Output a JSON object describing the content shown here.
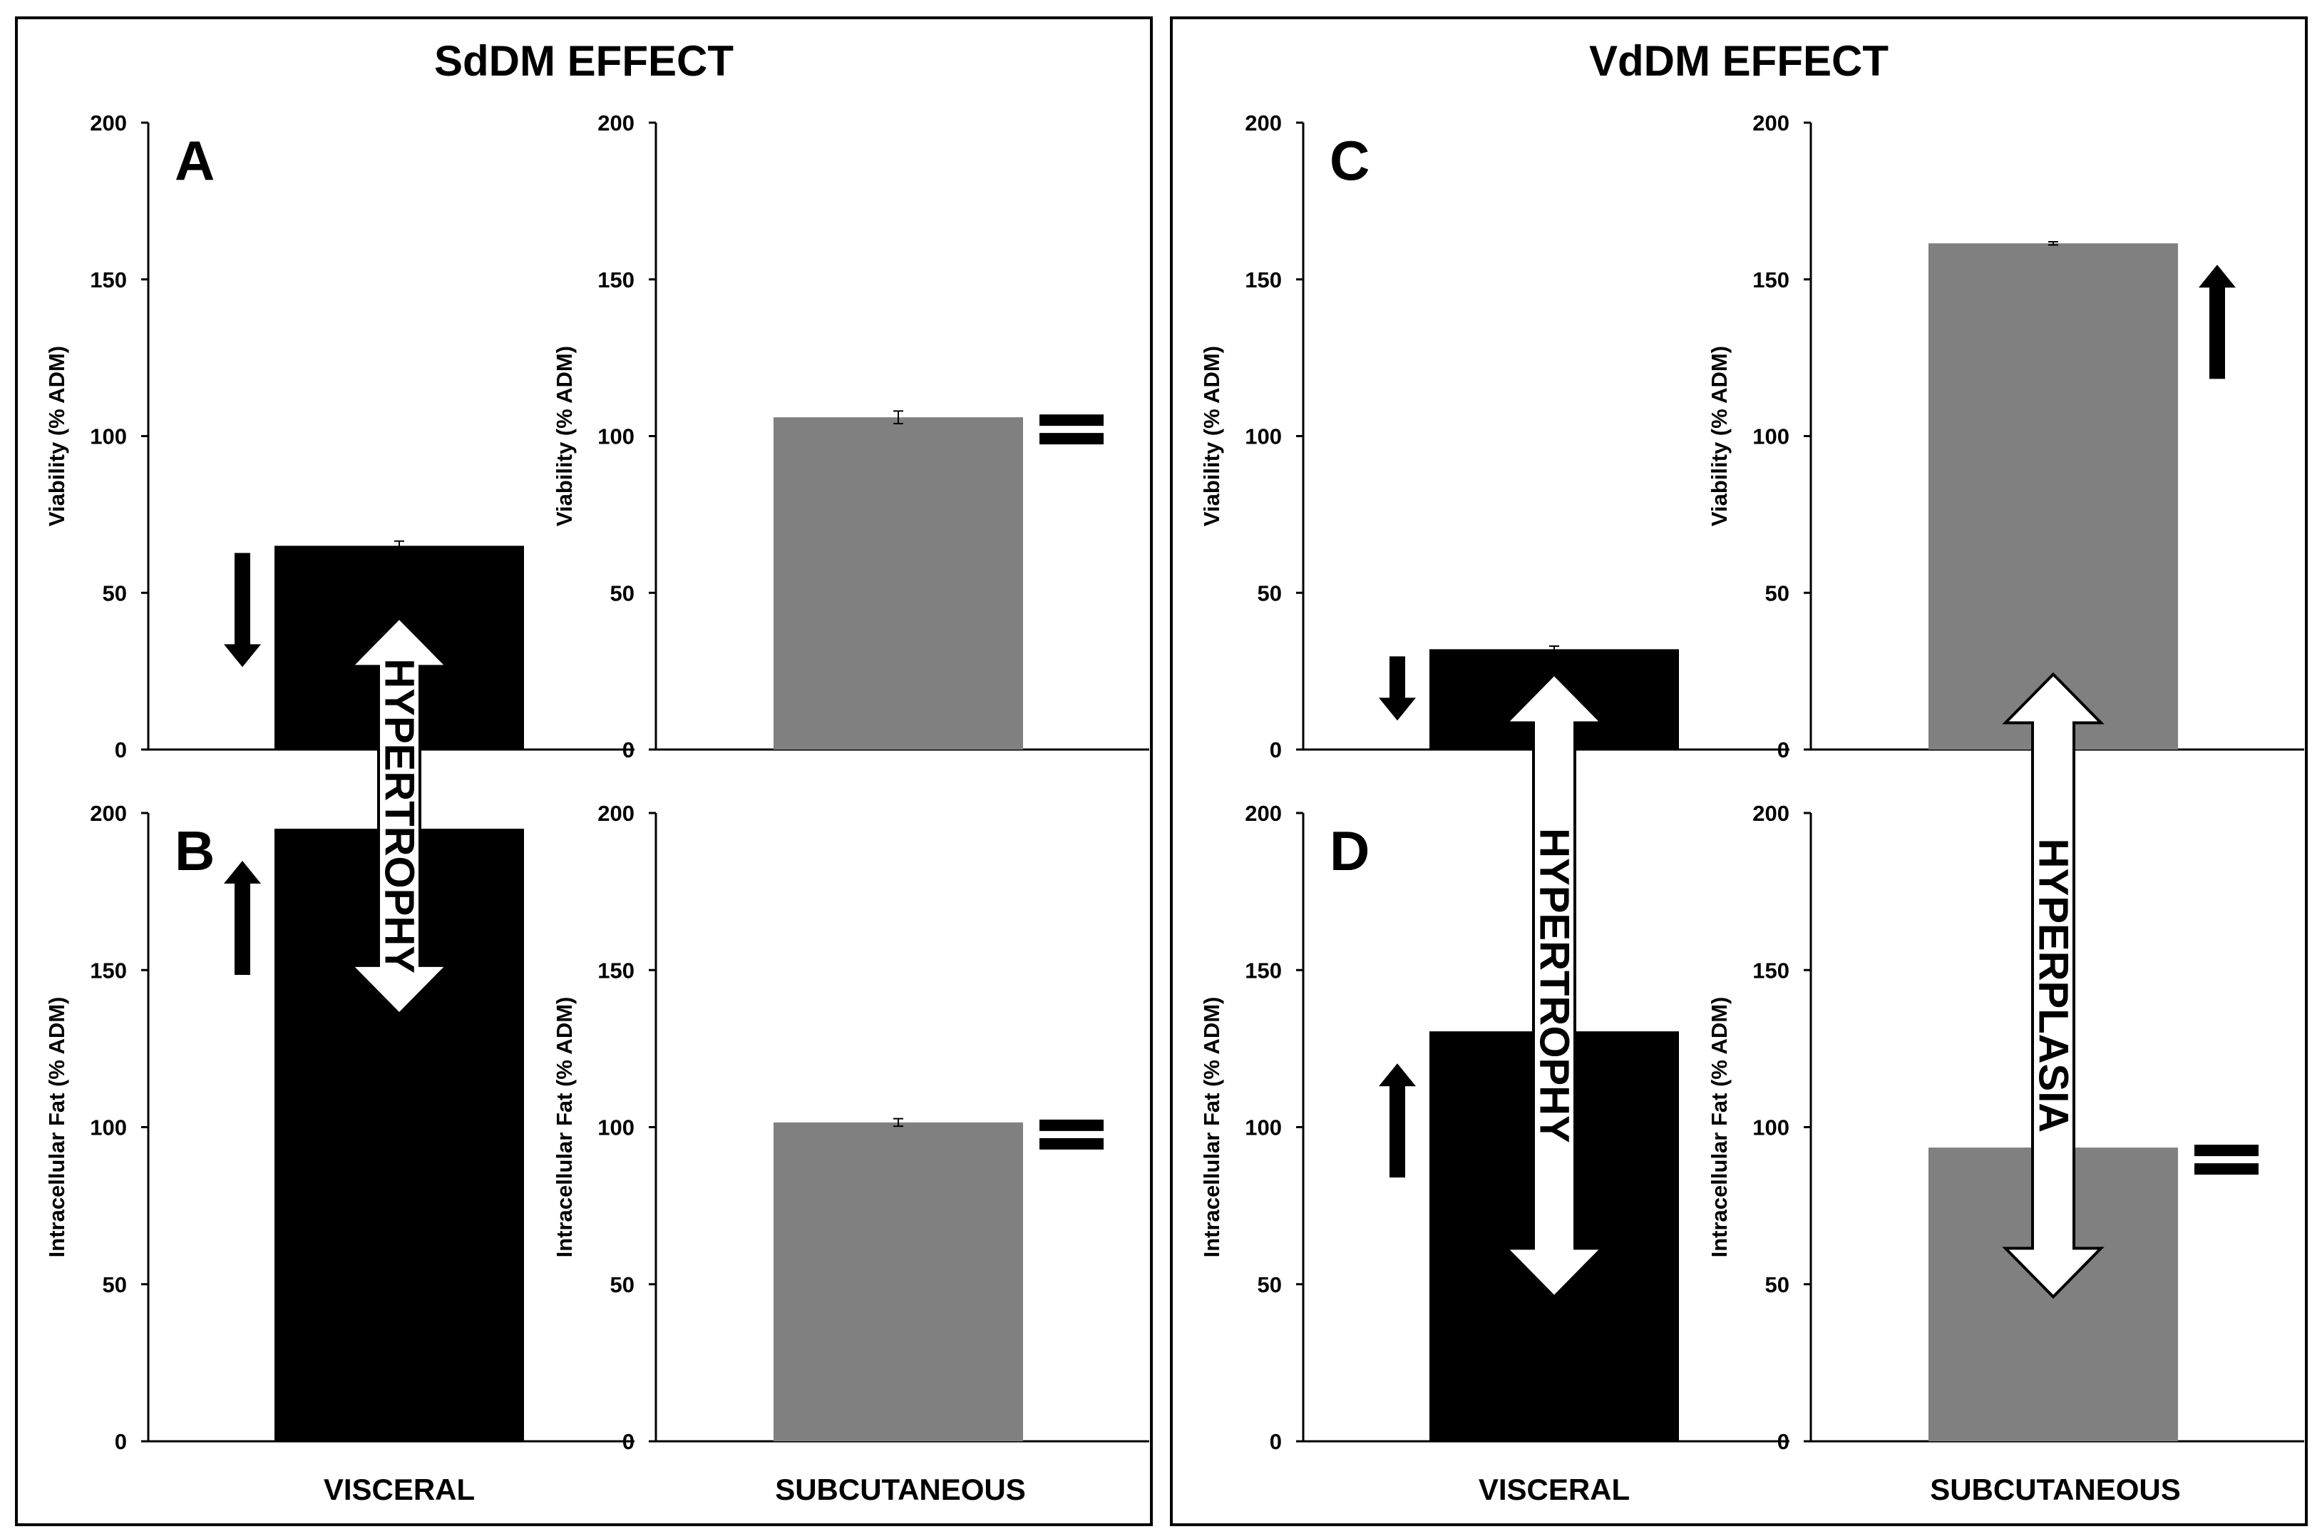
{
  "panels": [
    {
      "title": "SdDM EFFECT",
      "categories": [
        "VISCERAL",
        "SUBCUTANEOUS"
      ]
    },
    {
      "title": "VdDM EFFECT",
      "categories": [
        "VISCERAL",
        "SUBCUTANEOUS"
      ]
    }
  ],
  "colors": {
    "visceral": "#000000",
    "subcutaneous": "#808080",
    "axis": "#000000",
    "frame": "#000000"
  },
  "chart_data": [
    {
      "type": "bar",
      "panel_letter": "A",
      "title": "SdDM EFFECT",
      "ylabel": "Viability (% ADM)",
      "ylim": [
        0,
        200
      ],
      "yticks": [
        0,
        50,
        100,
        150,
        200
      ],
      "categories": [
        "VISCERAL",
        "SUBCUTANEOUS"
      ],
      "values": [
        65,
        106
      ],
      "errors": [
        1.5,
        2
      ],
      "indicators": [
        "down",
        "equal"
      ]
    },
    {
      "type": "bar",
      "panel_letter": "B",
      "title": "SdDM EFFECT",
      "ylabel": "Intracellular Fat (% ADM)",
      "ylim": [
        0,
        200
      ],
      "yticks": [
        0,
        50,
        100,
        150,
        200
      ],
      "categories": [
        "VISCERAL",
        "SUBCUTANEOUS"
      ],
      "values": [
        195,
        101.5
      ],
      "errors": [
        0,
        1.2
      ],
      "indicators": [
        "up",
        "equal"
      ]
    },
    {
      "type": "bar",
      "panel_letter": "C",
      "title": "VdDM EFFECT",
      "ylabel": "Viability (% ADM)",
      "ylim": [
        0,
        200
      ],
      "yticks": [
        0,
        50,
        100,
        150,
        200
      ],
      "categories": [
        "VISCERAL",
        "SUBCUTANEOUS"
      ],
      "values": [
        32,
        161.5
      ],
      "errors": [
        1,
        0.5
      ],
      "indicators": [
        "down",
        "up"
      ]
    },
    {
      "type": "bar",
      "panel_letter": "D",
      "title": "VdDM EFFECT",
      "ylabel": "Intracellular Fat (% ADM)",
      "ylim": [
        0,
        200
      ],
      "yticks": [
        0,
        50,
        100,
        150,
        200
      ],
      "categories": [
        "VISCERAL",
        "SUBCUTANEOUS"
      ],
      "values": [
        130.5,
        93.5
      ],
      "errors": [
        0,
        0
      ],
      "indicators": [
        "up",
        "equal"
      ]
    }
  ],
  "annotations": [
    {
      "label": "HYPERTROPHY",
      "panel": "SdDM EFFECT",
      "category": "VISCERAL",
      "from_value": 42,
      "to_value": 136
    },
    {
      "label": "HYPERTROPHY",
      "panel": "VdDM EFFECT",
      "category": "VISCERAL",
      "from_value": 24,
      "to_value": 46
    },
    {
      "label": "HYPERPLASIA",
      "panel": "VdDM EFFECT",
      "category": "SUBCUTANEOUS",
      "from_value": 24,
      "to_value": 46
    }
  ]
}
